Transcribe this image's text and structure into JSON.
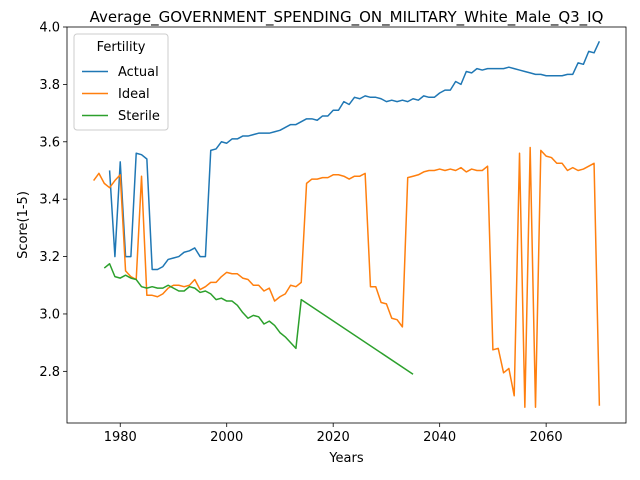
{
  "chart_data": {
    "type": "line",
    "title": "Average_GOVERNMENT_SPENDING_ON_MILITARY_White_Male_Q3_IQ",
    "xlabel": "Years",
    "ylabel": "Score(1-5)",
    "xlim": [
      1970,
      2075
    ],
    "ylim": [
      2.62,
      4.0
    ],
    "xticks": [
      1980,
      2000,
      2020,
      2040,
      2060
    ],
    "yticks": [
      2.8,
      3.0,
      3.2,
      3.4,
      3.6,
      3.8,
      4.0
    ],
    "xtick_labels": [
      "1980",
      "2000",
      "2020",
      "2040",
      "2060"
    ],
    "ytick_labels": [
      "2.8",
      "3.0",
      "3.2",
      "3.4",
      "3.6",
      "3.8",
      "4.0"
    ],
    "grid": false,
    "legend": {
      "title": "Fertility",
      "placement": "upper-left"
    },
    "series": [
      {
        "name": "Actual",
        "color": "#1f77b4",
        "x": [
          1978,
          1979,
          1980,
          1981,
          1982,
          1983,
          1984,
          1985,
          1986,
          1987,
          1988,
          1989,
          1990,
          1991,
          1992,
          1993,
          1994,
          1995,
          1996,
          1997,
          1998,
          1999,
          2000,
          2001,
          2002,
          2003,
          2004,
          2005,
          2006,
          2007,
          2008,
          2009,
          2010,
          2011,
          2012,
          2013,
          2014,
          2015,
          2016,
          2017,
          2018,
          2019,
          2020,
          2021,
          2022,
          2023,
          2024,
          2025,
          2026,
          2027,
          2028,
          2029,
          2030,
          2031,
          2032,
          2033,
          2034,
          2035,
          2036,
          2037,
          2038,
          2039,
          2040,
          2041,
          2042,
          2043,
          2044,
          2045,
          2046,
          2047,
          2048,
          2049,
          2050,
          2051,
          2052,
          2053,
          2054,
          2055,
          2056,
          2057,
          2058,
          2059,
          2060,
          2061,
          2062,
          2063,
          2064,
          2065,
          2066,
          2067,
          2068,
          2069,
          2070
        ],
        "values": [
          3.5,
          3.2,
          3.53,
          3.2,
          3.2,
          3.56,
          3.555,
          3.54,
          3.155,
          3.155,
          3.165,
          3.19,
          3.195,
          3.2,
          3.215,
          3.22,
          3.23,
          3.2,
          3.2,
          3.57,
          3.575,
          3.6,
          3.595,
          3.61,
          3.61,
          3.62,
          3.62,
          3.625,
          3.63,
          3.63,
          3.63,
          3.635,
          3.64,
          3.65,
          3.66,
          3.66,
          3.67,
          3.68,
          3.68,
          3.675,
          3.69,
          3.69,
          3.71,
          3.71,
          3.74,
          3.73,
          3.755,
          3.75,
          3.76,
          3.755,
          3.755,
          3.75,
          3.74,
          3.745,
          3.74,
          3.745,
          3.74,
          3.75,
          3.745,
          3.76,
          3.755,
          3.755,
          3.77,
          3.78,
          3.78,
          3.81,
          3.8,
          3.845,
          3.84,
          3.855,
          3.85,
          3.855,
          3.855,
          3.855,
          3.855,
          3.86,
          3.855,
          3.85,
          3.845,
          3.84,
          3.835,
          3.835,
          3.83,
          3.83,
          3.83,
          3.83,
          3.835,
          3.835,
          3.875,
          3.87,
          3.915,
          3.91,
          3.95
        ]
      },
      {
        "name": "Ideal",
        "color": "#ff7f0e",
        "x": [
          1975,
          1976,
          1977,
          1978,
          1979,
          1980,
          1981,
          1982,
          1983,
          1984,
          1985,
          1986,
          1987,
          1988,
          1989,
          1990,
          1991,
          1992,
          1993,
          1994,
          1995,
          1996,
          1997,
          1998,
          1999,
          2000,
          2001,
          2002,
          2003,
          2004,
          2005,
          2006,
          2007,
          2008,
          2009,
          2010,
          2011,
          2012,
          2013,
          2014,
          2015,
          2016,
          2017,
          2018,
          2019,
          2020,
          2021,
          2022,
          2023,
          2024,
          2025,
          2026,
          2027,
          2028,
          2029,
          2030,
          2031,
          2032,
          2033,
          2034,
          2035,
          2036,
          2037,
          2038,
          2039,
          2040,
          2041,
          2042,
          2043,
          2044,
          2045,
          2046,
          2047,
          2048,
          2049,
          2050,
          2051,
          2052,
          2053,
          2054,
          2055,
          2056,
          2057,
          2058,
          2059,
          2060,
          2061,
          2062,
          2063,
          2064,
          2065,
          2066,
          2067,
          2068,
          2069,
          2070
        ],
        "values": [
          3.465,
          3.49,
          3.455,
          3.44,
          3.465,
          3.485,
          3.15,
          3.13,
          3.12,
          3.48,
          3.065,
          3.065,
          3.06,
          3.07,
          3.09,
          3.1,
          3.1,
          3.095,
          3.1,
          3.12,
          3.085,
          3.095,
          3.11,
          3.11,
          3.13,
          3.145,
          3.14,
          3.14,
          3.125,
          3.12,
          3.1,
          3.1,
          3.08,
          3.09,
          3.045,
          3.06,
          3.07,
          3.1,
          3.095,
          3.11,
          3.455,
          3.47,
          3.47,
          3.475,
          3.475,
          3.485,
          3.485,
          3.48,
          3.47,
          3.48,
          3.48,
          3.49,
          3.095,
          3.095,
          3.04,
          3.035,
          2.985,
          2.98,
          2.955,
          3.475,
          3.48,
          3.485,
          3.495,
          3.5,
          3.5,
          3.505,
          3.5,
          3.505,
          3.5,
          3.51,
          3.495,
          3.505,
          3.5,
          3.5,
          3.515,
          2.875,
          2.88,
          2.795,
          2.81,
          2.715,
          3.56,
          2.675,
          3.58,
          2.675,
          3.57,
          3.55,
          3.545,
          3.525,
          3.525,
          3.5,
          3.51,
          3.5,
          3.505,
          3.515,
          3.525,
          2.68
        ]
      },
      {
        "name": "Sterile",
        "color": "#2ca02c",
        "x": [
          1977,
          1978,
          1979,
          1980,
          1981,
          1982,
          1983,
          1984,
          1985,
          1986,
          1987,
          1988,
          1989,
          1990,
          1991,
          1992,
          1993,
          1994,
          1995,
          1996,
          1997,
          1998,
          1999,
          2000,
          2001,
          2002,
          2003,
          2004,
          2005,
          2006,
          2007,
          2008,
          2009,
          2010,
          2011,
          2012,
          2013,
          2014,
          2035
        ],
        "values": [
          3.16,
          3.175,
          3.13,
          3.125,
          3.135,
          3.125,
          3.12,
          3.095,
          3.09,
          3.095,
          3.09,
          3.09,
          3.1,
          3.09,
          3.08,
          3.08,
          3.095,
          3.09,
          3.075,
          3.08,
          3.07,
          3.05,
          3.055,
          3.045,
          3.045,
          3.03,
          3.005,
          2.985,
          2.995,
          2.99,
          2.965,
          2.975,
          2.96,
          2.935,
          2.92,
          2.9,
          2.88,
          3.05,
          2.79
        ]
      }
    ]
  }
}
